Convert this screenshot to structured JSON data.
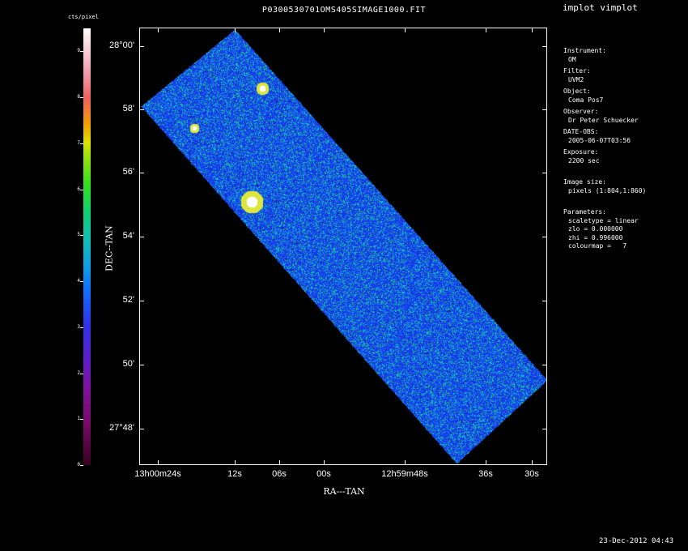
{
  "window": {
    "app_title": "implot vimplot",
    "plot_title": "P0300530701OMS405SIMAGE1000.FIT"
  },
  "colorbar": {
    "label": "cts/pixel",
    "ticks": [
      "0",
      "1",
      "2",
      "3",
      "4",
      "5",
      "6",
      "7",
      "8",
      "9"
    ]
  },
  "axes": {
    "xlabel": "RA---TAN",
    "ylabel": "DEC--TAN",
    "x_ticks": [
      "13h00m24s",
      "12s",
      "06s",
      "00s",
      "12h59m48s",
      "36s",
      "30s"
    ],
    "y_ticks": [
      "28°00'",
      "58'",
      "56'",
      "54'",
      "52'",
      "50'",
      "27°48'"
    ]
  },
  "info": {
    "instrument_label": "Instrument:",
    "instrument": "OM",
    "filter_label": "Filter:",
    "filter": "UVM2",
    "object_label": "Object:",
    "object": "Coma Pos7",
    "observer_label": "Observer:",
    "observer": "Dr Peter Schuecker",
    "date_label": "DATE-OBS:",
    "date": "2005-06-07T03:56",
    "exposure_label": "Exposure:",
    "exposure": "2200 sec",
    "image_size_label": "Image size:",
    "image_size": "pixels (1:804,1:860)",
    "parameters_label": "Parameters:",
    "scaletype": "scaletype = linear",
    "zlo": "zlo = 0.000000",
    "zhi": "zhi = 0.996000",
    "colourmap": "colourmap =   7"
  },
  "timestamp": "23-Dec-2012 04:43",
  "colors": {
    "background": "#000000",
    "data_blue": "#1838e8",
    "data_cyan": "#10c0d0",
    "data_green": "#20d040"
  }
}
